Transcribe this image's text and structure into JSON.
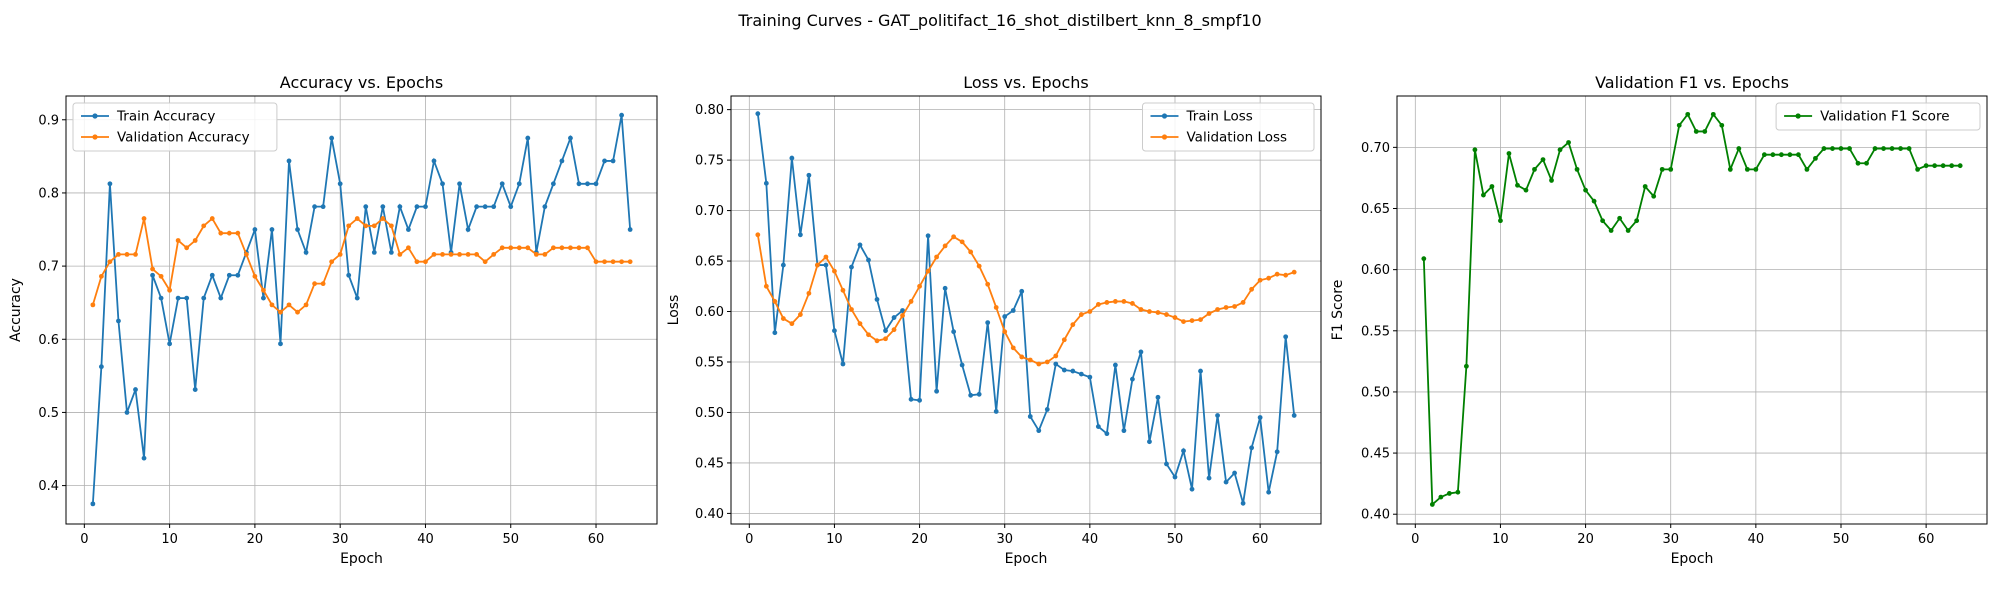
{
  "figure": {
    "title": "Training Curves - GAT_politifact_16_shot_distilbert_knn_8_smpf10"
  },
  "colors": {
    "blue": "#1f77b4",
    "orange": "#ff7f0e",
    "green": "#008000"
  },
  "chart_data": [
    {
      "type": "line",
      "title": "Accuracy vs. Epochs",
      "xlabel": "Epoch",
      "ylabel": "Accuracy",
      "xlim": [
        -2.15,
        67.15
      ],
      "ylim": [
        0.3475,
        0.9325
      ],
      "xticks": [
        0,
        10,
        20,
        30,
        40,
        50,
        60
      ],
      "yticks": [
        0.4,
        0.5,
        0.6,
        0.7,
        0.8,
        0.9
      ],
      "ytick_labels": [
        "0.4",
        "0.5",
        "0.6",
        "0.7",
        "0.8",
        "0.9"
      ],
      "grid": true,
      "legend_position": "upper left",
      "x": [
        1,
        2,
        3,
        4,
        5,
        6,
        7,
        8,
        9,
        10,
        11,
        12,
        13,
        14,
        15,
        16,
        17,
        18,
        19,
        20,
        21,
        22,
        23,
        24,
        25,
        26,
        27,
        28,
        29,
        30,
        31,
        32,
        33,
        34,
        35,
        36,
        37,
        38,
        39,
        40,
        41,
        42,
        43,
        44,
        45,
        46,
        47,
        48,
        49,
        50,
        51,
        52,
        53,
        54,
        55,
        56,
        57,
        58,
        59,
        60,
        61,
        62,
        63,
        64
      ],
      "series": [
        {
          "name": "Train Accuracy",
          "color": "#1f77b4",
          "values": [
            0.375,
            0.5625,
            0.8125,
            0.625,
            0.5,
            0.53125,
            0.4375,
            0.6875,
            0.65625,
            0.59375,
            0.65625,
            0.65625,
            0.53125,
            0.65625,
            0.6875,
            0.65625,
            0.6875,
            0.6875,
            0.71875,
            0.75,
            0.65625,
            0.75,
            0.59375,
            0.84375,
            0.75,
            0.71875,
            0.78125,
            0.78125,
            0.875,
            0.8125,
            0.6875,
            0.65625,
            0.78125,
            0.71875,
            0.78125,
            0.71875,
            0.78125,
            0.75,
            0.78125,
            0.78125,
            0.84375,
            0.8125,
            0.71875,
            0.8125,
            0.75,
            0.78125,
            0.78125,
            0.78125,
            0.8125,
            0.78125,
            0.8125,
            0.875,
            0.71875,
            0.78125,
            0.8125,
            0.84375,
            0.875,
            0.8125,
            0.8125,
            0.8125,
            0.84375,
            0.84375,
            0.90625,
            0.75
          ]
        },
        {
          "name": "Validation Accuracy",
          "color": "#ff7f0e",
          "values": [
            0.647,
            0.686,
            0.706,
            0.716,
            0.716,
            0.716,
            0.765,
            0.696,
            0.686,
            0.667,
            0.735,
            0.725,
            0.735,
            0.755,
            0.765,
            0.745,
            0.745,
            0.745,
            0.716,
            0.686,
            0.667,
            0.647,
            0.637,
            0.647,
            0.637,
            0.647,
            0.676,
            0.676,
            0.706,
            0.716,
            0.755,
            0.765,
            0.755,
            0.755,
            0.765,
            0.755,
            0.716,
            0.725,
            0.706,
            0.706,
            0.716,
            0.716,
            0.716,
            0.716,
            0.716,
            0.716,
            0.706,
            0.716,
            0.725,
            0.725,
            0.725,
            0.725,
            0.716,
            0.716,
            0.725,
            0.725,
            0.725,
            0.725,
            0.725,
            0.706,
            0.706,
            0.706,
            0.706,
            0.706
          ]
        }
      ]
    },
    {
      "type": "line",
      "title": "Loss vs. Epochs",
      "xlabel": "Epoch",
      "ylabel": "Loss",
      "xlim": [
        -2.15,
        67.15
      ],
      "ylim": [
        0.3895,
        0.8135
      ],
      "xticks": [
        0,
        10,
        20,
        30,
        40,
        50,
        60
      ],
      "yticks": [
        0.4,
        0.45,
        0.5,
        0.55,
        0.6,
        0.65,
        0.7,
        0.75,
        0.8
      ],
      "ytick_labels": [
        "0.40",
        "0.45",
        "0.50",
        "0.55",
        "0.60",
        "0.65",
        "0.70",
        "0.75",
        "0.80"
      ],
      "grid": true,
      "legend_position": "upper right",
      "x": [
        1,
        2,
        3,
        4,
        5,
        6,
        7,
        8,
        9,
        10,
        11,
        12,
        13,
        14,
        15,
        16,
        17,
        18,
        19,
        20,
        21,
        22,
        23,
        24,
        25,
        26,
        27,
        28,
        29,
        30,
        31,
        32,
        33,
        34,
        35,
        36,
        37,
        38,
        39,
        40,
        41,
        42,
        43,
        44,
        45,
        46,
        47,
        48,
        49,
        50,
        51,
        52,
        53,
        54,
        55,
        56,
        57,
        58,
        59,
        60,
        61,
        62,
        63,
        64
      ],
      "series": [
        {
          "name": "Train Loss",
          "color": "#1f77b4",
          "values": [
            0.796,
            0.727,
            0.579,
            0.646,
            0.752,
            0.676,
            0.735,
            0.646,
            0.646,
            0.581,
            0.548,
            0.644,
            0.666,
            0.651,
            0.612,
            0.581,
            0.594,
            0.601,
            0.513,
            0.512,
            0.675,
            0.521,
            0.623,
            0.58,
            0.547,
            0.517,
            0.518,
            0.589,
            0.501,
            0.595,
            0.601,
            0.62,
            0.496,
            0.482,
            0.503,
            0.548,
            0.542,
            0.541,
            0.538,
            0.535,
            0.486,
            0.479,
            0.547,
            0.482,
            0.533,
            0.56,
            0.471,
            0.515,
            0.449,
            0.436,
            0.462,
            0.424,
            0.541,
            0.435,
            0.497,
            0.431,
            0.44,
            0.41,
            0.465,
            0.495,
            0.421,
            0.461,
            0.575,
            0.497
          ]
        },
        {
          "name": "Validation Loss",
          "color": "#ff7f0e",
          "values": [
            0.676,
            0.625,
            0.61,
            0.593,
            0.588,
            0.597,
            0.618,
            0.646,
            0.654,
            0.64,
            0.621,
            0.602,
            0.588,
            0.577,
            0.571,
            0.573,
            0.582,
            0.596,
            0.61,
            0.625,
            0.64,
            0.654,
            0.665,
            0.674,
            0.669,
            0.659,
            0.645,
            0.627,
            0.604,
            0.58,
            0.564,
            0.555,
            0.552,
            0.548,
            0.55,
            0.556,
            0.572,
            0.587,
            0.597,
            0.6,
            0.607,
            0.609,
            0.61,
            0.61,
            0.608,
            0.602,
            0.6,
            0.599,
            0.597,
            0.594,
            0.59,
            0.591,
            0.592,
            0.598,
            0.602,
            0.604,
            0.605,
            0.609,
            0.622,
            0.631,
            0.633,
            0.637,
            0.636,
            0.639
          ]
        }
      ]
    },
    {
      "type": "line",
      "title": "Validation F1 vs. Epochs",
      "xlabel": "Epoch",
      "ylabel": "F1 Score",
      "xlim": [
        -2.15,
        67.15
      ],
      "ylim": [
        0.392,
        0.742
      ],
      "xticks": [
        0,
        10,
        20,
        30,
        40,
        50,
        60
      ],
      "yticks": [
        0.4,
        0.45,
        0.5,
        0.55,
        0.6,
        0.65,
        0.7
      ],
      "ytick_labels": [
        "0.40",
        "0.45",
        "0.50",
        "0.55",
        "0.60",
        "0.65",
        "0.70"
      ],
      "grid": true,
      "legend_position": "upper right",
      "x": [
        1,
        2,
        3,
        4,
        5,
        6,
        7,
        8,
        9,
        10,
        11,
        12,
        13,
        14,
        15,
        16,
        17,
        18,
        19,
        20,
        21,
        22,
        23,
        24,
        25,
        26,
        27,
        28,
        29,
        30,
        31,
        32,
        33,
        34,
        35,
        36,
        37,
        38,
        39,
        40,
        41,
        42,
        43,
        44,
        45,
        46,
        47,
        48,
        49,
        50,
        51,
        52,
        53,
        54,
        55,
        56,
        57,
        58,
        59,
        60,
        61,
        62,
        63,
        64
      ],
      "series": [
        {
          "name": "Validation F1 Score",
          "color": "#008000",
          "values": [
            0.609,
            0.408,
            0.414,
            0.417,
            0.418,
            0.521,
            0.698,
            0.661,
            0.668,
            0.64,
            0.695,
            0.669,
            0.665,
            0.682,
            0.69,
            0.673,
            0.698,
            0.704,
            0.682,
            0.665,
            0.656,
            0.64,
            0.632,
            0.642,
            0.632,
            0.64,
            0.668,
            0.66,
            0.682,
            0.682,
            0.718,
            0.727,
            0.713,
            0.713,
            0.727,
            0.718,
            0.682,
            0.699,
            0.682,
            0.682,
            0.694,
            0.694,
            0.694,
            0.694,
            0.694,
            0.682,
            0.691,
            0.699,
            0.699,
            0.699,
            0.699,
            0.687,
            0.687,
            0.699,
            0.699,
            0.699,
            0.699,
            0.699,
            0.682,
            0.685,
            0.685,
            0.685,
            0.685,
            0.685
          ]
        }
      ]
    }
  ]
}
